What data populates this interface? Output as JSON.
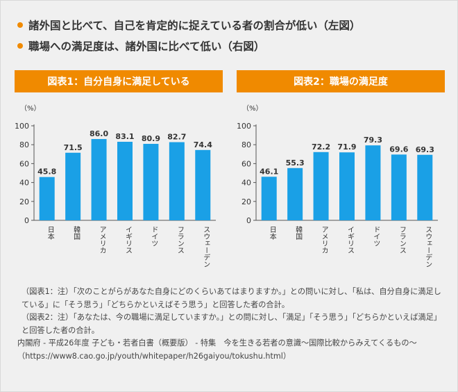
{
  "bullets": [
    "諸外国と比べて、自己を肯定的に捉えている者の割合が低い（左図）",
    "職場への満足度は、諸外国に比べて低い（右図）"
  ],
  "colors": {
    "accent": "#f08a00",
    "bar": "#1aa0e6"
  },
  "chart_data": [
    {
      "type": "bar",
      "title": "図表1：自分自身に満足している",
      "unit_label": "（%）",
      "categories": [
        "日本",
        "韓国",
        "アメリカ",
        "イギリス",
        "ドイツ",
        "フランス",
        "スウェーデン"
      ],
      "values": [
        45.8,
        71.5,
        86.0,
        83.1,
        80.9,
        82.7,
        74.4
      ],
      "value_labels": [
        "45.8",
        "71.5",
        "86.0",
        "83.1",
        "80.9",
        "82.7",
        "74.4"
      ],
      "ylim": [
        0,
        100
      ],
      "yticks": [
        0,
        20,
        40,
        60,
        80,
        100
      ],
      "grid": false
    },
    {
      "type": "bar",
      "title": "図表2：職場の満足度",
      "unit_label": "（%）",
      "categories": [
        "日本",
        "韓国",
        "アメリカ",
        "イギリス",
        "ドイツ",
        "フランス",
        "スウェーデン"
      ],
      "values": [
        46.1,
        55.3,
        72.2,
        71.9,
        79.3,
        69.6,
        69.3
      ],
      "value_labels": [
        "46.1",
        "55.3",
        "72.2",
        "71.9",
        "79.3",
        "69.6",
        "69.3"
      ],
      "ylim": [
        0,
        100
      ],
      "yticks": [
        0,
        20,
        40,
        60,
        80,
        100
      ],
      "grid": false
    }
  ],
  "notes": [
    "（図表1：注）「次のことがらがあなた自身にどのくらいあてはまりますか。」との問いに対し、「私は、自分自身に満足している」に「そう思う」「どちらかといえばそう思う」と回答した者の合計。",
    "（図表2：注）「あなたは、今の職場に満足していますか。」との問に対し、「満足」「そう思う」「どちらかといえば満足」と回答した者の合計。",
    "内閣府 - 平成26年度 子ども・若者白書（概要版） - 特集　今を生きる若者の意識～国際比較からみえてくるもの～（https://www8.cao.go.jp/youth/whitepaper/h26gaiyou/tokushu.html）"
  ]
}
